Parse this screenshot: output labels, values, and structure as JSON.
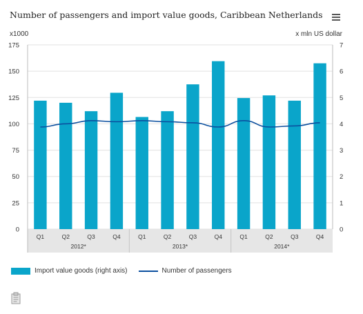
{
  "chart_data": {
    "type": "bar",
    "title": "Number of passengers and import value goods, Caribbean Netherlands",
    "left_unit": "x1000",
    "right_unit": "x mln US dollar",
    "categories": [
      "Q1",
      "Q2",
      "Q3",
      "Q4",
      "Q1",
      "Q2",
      "Q3",
      "Q4",
      "Q1",
      "Q2",
      "Q3",
      "Q4"
    ],
    "groups": [
      "2012*",
      "2013*",
      "2014*"
    ],
    "left_axis": {
      "ylim": [
        0,
        175
      ],
      "ticks": [
        "0",
        "25",
        "50",
        "75",
        "100",
        "125",
        "150",
        "175"
      ]
    },
    "right_axis": {
      "ylim": [
        0,
        7
      ],
      "ticks": [
        "0",
        "1",
        "2",
        "3",
        "4",
        "5",
        "6",
        "7"
      ]
    },
    "series": [
      {
        "name": "Import value goods (right axis)",
        "type": "bar",
        "axis": "right",
        "color": "#0aa5ca",
        "values": [
          4.88,
          4.8,
          4.48,
          5.18,
          4.26,
          4.48,
          5.5,
          6.38,
          4.98,
          5.08,
          4.88,
          6.3
        ]
      },
      {
        "name": "Number of passengers",
        "type": "line",
        "axis": "left",
        "color": "#0b4f9f",
        "values": [
          97,
          100,
          103,
          102,
          103,
          102,
          101,
          97,
          103,
          97,
          98,
          101
        ]
      }
    ],
    "grid": true,
    "legend": "bottom-left"
  },
  "toolbar": {
    "menu_icon": "hamburger-menu-icon",
    "export_icon": "clipboard-icon"
  }
}
